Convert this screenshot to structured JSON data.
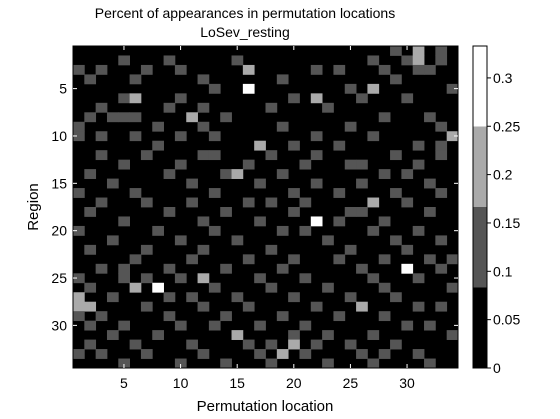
{
  "chart_data": {
    "type": "heatmap",
    "title": "Percent of appearances in permutation locations",
    "subtitle": "LoSev_resting",
    "xlabel": "Permutation location",
    "ylabel": "Region",
    "x_range": [
      0.5,
      34.5
    ],
    "y_range": [
      0.5,
      34.5
    ],
    "y_reversed": true,
    "x_ticks": [
      "5",
      "10",
      "15",
      "20",
      "25",
      "30"
    ],
    "y_ticks": [
      "5",
      "10",
      "15",
      "20",
      "25",
      "30"
    ],
    "rows": 34,
    "cols": 34,
    "colormap": "gray",
    "colorbar": {
      "range": [
        0,
        0.333
      ],
      "ticks": [
        "0",
        "0.05",
        "0.1",
        "0.15",
        "0.2",
        "0.25",
        "0.3"
      ],
      "levels": [
        {
          "value": 0.0417,
          "color": "#000000"
        },
        {
          "value": 0.125,
          "color": "#555555"
        },
        {
          "value": 0.2083,
          "color": "#aaaaaa"
        },
        {
          "value": 0.2917,
          "color": "#ffffff"
        }
      ]
    },
    "cells": [
      [
        1,
        29,
        1
      ],
      [
        1,
        31,
        2
      ],
      [
        1,
        33,
        1
      ],
      [
        2,
        5,
        1
      ],
      [
        2,
        9,
        1
      ],
      [
        2,
        15,
        1
      ],
      [
        2,
        27,
        1
      ],
      [
        2,
        30,
        1
      ],
      [
        2,
        31,
        2
      ],
      [
        2,
        33,
        1
      ],
      [
        3,
        1,
        1
      ],
      [
        3,
        3,
        1
      ],
      [
        3,
        7,
        1
      ],
      [
        3,
        10,
        1
      ],
      [
        3,
        16,
        2
      ],
      [
        3,
        22,
        1
      ],
      [
        3,
        24,
        1
      ],
      [
        3,
        28,
        1
      ],
      [
        3,
        31,
        1
      ],
      [
        3,
        32,
        1
      ],
      [
        4,
        2,
        1
      ],
      [
        4,
        6,
        1
      ],
      [
        4,
        12,
        1
      ],
      [
        4,
        19,
        1
      ],
      [
        4,
        29,
        1
      ],
      [
        5,
        13,
        1
      ],
      [
        5,
        16,
        3
      ],
      [
        5,
        25,
        1
      ],
      [
        5,
        27,
        2
      ],
      [
        5,
        34,
        1
      ],
      [
        6,
        5,
        1
      ],
      [
        6,
        6,
        2
      ],
      [
        6,
        10,
        1
      ],
      [
        6,
        20,
        1
      ],
      [
        6,
        22,
        2
      ],
      [
        6,
        26,
        1
      ],
      [
        6,
        30,
        1
      ],
      [
        7,
        3,
        1
      ],
      [
        7,
        9,
        1
      ],
      [
        7,
        12,
        1
      ],
      [
        7,
        18,
        1
      ],
      [
        7,
        23,
        1
      ],
      [
        8,
        2,
        1
      ],
      [
        8,
        4,
        1
      ],
      [
        8,
        5,
        1
      ],
      [
        8,
        6,
        1
      ],
      [
        8,
        11,
        2
      ],
      [
        8,
        14,
        1
      ],
      [
        8,
        28,
        1
      ],
      [
        8,
        32,
        1
      ],
      [
        9,
        1,
        1
      ],
      [
        9,
        8,
        1
      ],
      [
        9,
        12,
        1
      ],
      [
        9,
        19,
        1
      ],
      [
        9,
        25,
        1
      ],
      [
        9,
        33,
        1
      ],
      [
        10,
        1,
        1
      ],
      [
        10,
        3,
        1
      ],
      [
        10,
        6,
        1
      ],
      [
        10,
        10,
        1
      ],
      [
        10,
        13,
        1
      ],
      [
        10,
        22,
        1
      ],
      [
        10,
        27,
        1
      ],
      [
        10,
        34,
        2
      ],
      [
        11,
        8,
        1
      ],
      [
        11,
        17,
        2
      ],
      [
        11,
        20,
        1
      ],
      [
        11,
        24,
        1
      ],
      [
        11,
        31,
        1
      ],
      [
        11,
        33,
        1
      ],
      [
        12,
        3,
        1
      ],
      [
        12,
        7,
        1
      ],
      [
        12,
        12,
        1
      ],
      [
        12,
        13,
        1
      ],
      [
        12,
        18,
        1
      ],
      [
        12,
        22,
        1
      ],
      [
        12,
        29,
        1
      ],
      [
        12,
        33,
        1
      ],
      [
        13,
        5,
        1
      ],
      [
        13,
        10,
        1
      ],
      [
        13,
        16,
        1
      ],
      [
        13,
        21,
        1
      ],
      [
        13,
        25,
        1
      ],
      [
        13,
        26,
        1
      ],
      [
        13,
        31,
        1
      ],
      [
        14,
        2,
        1
      ],
      [
        14,
        9,
        1
      ],
      [
        14,
        14,
        1
      ],
      [
        14,
        15,
        2
      ],
      [
        14,
        19,
        1
      ],
      [
        14,
        28,
        1
      ],
      [
        14,
        30,
        1
      ],
      [
        15,
        4,
        1
      ],
      [
        15,
        11,
        1
      ],
      [
        15,
        17,
        1
      ],
      [
        15,
        22,
        1
      ],
      [
        15,
        26,
        1
      ],
      [
        15,
        32,
        1
      ],
      [
        16,
        1,
        1
      ],
      [
        16,
        6,
        1
      ],
      [
        16,
        13,
        1
      ],
      [
        16,
        20,
        1
      ],
      [
        16,
        24,
        1
      ],
      [
        16,
        29,
        1
      ],
      [
        16,
        33,
        1
      ],
      [
        17,
        3,
        1
      ],
      [
        17,
        7,
        1
      ],
      [
        17,
        11,
        1
      ],
      [
        17,
        16,
        1
      ],
      [
        17,
        18,
        1
      ],
      [
        17,
        21,
        1
      ],
      [
        17,
        27,
        2
      ],
      [
        17,
        30,
        1
      ],
      [
        18,
        2,
        1
      ],
      [
        18,
        9,
        1
      ],
      [
        18,
        14,
        1
      ],
      [
        18,
        20,
        1
      ],
      [
        18,
        25,
        1
      ],
      [
        18,
        26,
        1
      ],
      [
        18,
        32,
        1
      ],
      [
        19,
        5,
        1
      ],
      [
        19,
        12,
        1
      ],
      [
        19,
        17,
        1
      ],
      [
        19,
        22,
        3
      ],
      [
        19,
        24,
        1
      ],
      [
        19,
        28,
        1
      ],
      [
        20,
        1,
        1
      ],
      [
        20,
        8,
        1
      ],
      [
        20,
        13,
        1
      ],
      [
        20,
        19,
        1
      ],
      [
        20,
        21,
        1
      ],
      [
        20,
        27,
        1
      ],
      [
        20,
        31,
        1
      ],
      [
        21,
        4,
        1
      ],
      [
        21,
        10,
        1
      ],
      [
        21,
        15,
        1
      ],
      [
        21,
        23,
        1
      ],
      [
        21,
        29,
        1
      ],
      [
        21,
        33,
        1
      ],
      [
        22,
        2,
        1
      ],
      [
        22,
        7,
        1
      ],
      [
        22,
        12,
        1
      ],
      [
        22,
        18,
        1
      ],
      [
        22,
        25,
        1
      ],
      [
        22,
        30,
        1
      ],
      [
        23,
        6,
        1
      ],
      [
        23,
        11,
        1
      ],
      [
        23,
        16,
        1
      ],
      [
        23,
        20,
        1
      ],
      [
        23,
        24,
        1
      ],
      [
        23,
        28,
        1
      ],
      [
        23,
        32,
        1
      ],
      [
        23,
        34,
        1
      ],
      [
        24,
        3,
        1
      ],
      [
        24,
        5,
        1
      ],
      [
        24,
        9,
        1
      ],
      [
        24,
        14,
        1
      ],
      [
        24,
        19,
        1
      ],
      [
        24,
        26,
        1
      ],
      [
        24,
        30,
        3
      ],
      [
        24,
        33,
        1
      ],
      [
        25,
        1,
        1
      ],
      [
        25,
        5,
        1
      ],
      [
        25,
        7,
        1
      ],
      [
        25,
        10,
        1
      ],
      [
        25,
        12,
        2
      ],
      [
        25,
        17,
        1
      ],
      [
        25,
        21,
        1
      ],
      [
        25,
        27,
        1
      ],
      [
        25,
        31,
        1
      ],
      [
        26,
        2,
        1
      ],
      [
        26,
        6,
        2
      ],
      [
        26,
        8,
        3
      ],
      [
        26,
        13,
        1
      ],
      [
        26,
        18,
        1
      ],
      [
        26,
        23,
        1
      ],
      [
        26,
        28,
        1
      ],
      [
        26,
        34,
        1
      ],
      [
        27,
        1,
        2
      ],
      [
        27,
        4,
        1
      ],
      [
        27,
        9,
        1
      ],
      [
        27,
        11,
        1
      ],
      [
        27,
        15,
        1
      ],
      [
        27,
        20,
        1
      ],
      [
        27,
        25,
        1
      ],
      [
        27,
        29,
        1
      ],
      [
        28,
        1,
        2
      ],
      [
        28,
        2,
        2
      ],
      [
        28,
        7,
        1
      ],
      [
        28,
        12,
        1
      ],
      [
        28,
        16,
        1
      ],
      [
        28,
        22,
        1
      ],
      [
        28,
        26,
        2
      ],
      [
        28,
        31,
        1
      ],
      [
        28,
        33,
        1
      ],
      [
        29,
        1,
        1
      ],
      [
        29,
        3,
        1
      ],
      [
        29,
        9,
        1
      ],
      [
        29,
        14,
        1
      ],
      [
        29,
        19,
        1
      ],
      [
        29,
        24,
        1
      ],
      [
        29,
        28,
        1
      ],
      [
        30,
        2,
        1
      ],
      [
        30,
        5,
        1
      ],
      [
        30,
        10,
        1
      ],
      [
        30,
        13,
        1
      ],
      [
        30,
        17,
        1
      ],
      [
        30,
        21,
        1
      ],
      [
        30,
        30,
        1
      ],
      [
        30,
        32,
        1
      ],
      [
        31,
        4,
        1
      ],
      [
        31,
        8,
        1
      ],
      [
        31,
        15,
        2
      ],
      [
        31,
        20,
        1
      ],
      [
        31,
        23,
        1
      ],
      [
        31,
        27,
        1
      ],
      [
        31,
        34,
        1
      ],
      [
        32,
        2,
        1
      ],
      [
        32,
        6,
        1
      ],
      [
        32,
        11,
        1
      ],
      [
        32,
        16,
        1
      ],
      [
        32,
        18,
        1
      ],
      [
        32,
        20,
        2
      ],
      [
        32,
        22,
        1
      ],
      [
        32,
        25,
        1
      ],
      [
        32,
        29,
        1
      ],
      [
        33,
        1,
        1
      ],
      [
        33,
        3,
        1
      ],
      [
        33,
        7,
        1
      ],
      [
        33,
        12,
        1
      ],
      [
        33,
        17,
        1
      ],
      [
        33,
        19,
        2
      ],
      [
        33,
        21,
        1
      ],
      [
        33,
        26,
        1
      ],
      [
        33,
        28,
        1
      ],
      [
        33,
        31,
        1
      ],
      [
        34,
        5,
        1
      ],
      [
        34,
        10,
        1
      ],
      [
        34,
        14,
        1
      ],
      [
        34,
        18,
        1
      ],
      [
        34,
        23,
        1
      ],
      [
        34,
        27,
        1
      ],
      [
        34,
        32,
        1
      ]
    ]
  }
}
